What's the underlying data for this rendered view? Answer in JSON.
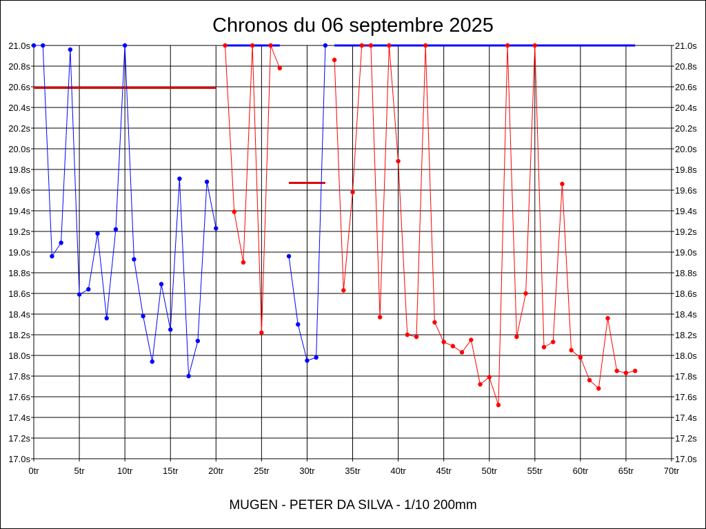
{
  "chart_data": {
    "type": "line",
    "title": "Chronos du 06 septembre 2025",
    "xlabel": "MUGEN - PETER DA SILVA - 1/10 200mm",
    "ylabel": "",
    "xlim": [
      0,
      70
    ],
    "ylim": [
      17.0,
      21.0
    ],
    "grid": true,
    "x_ticks": [
      "0tr",
      "5tr",
      "10tr",
      "15tr",
      "20tr",
      "25tr",
      "30tr",
      "35tr",
      "40tr",
      "45tr",
      "50tr",
      "55tr",
      "60tr",
      "65tr",
      "70tr"
    ],
    "y_ticks": [
      "17.0s",
      "17.2s",
      "17.4s",
      "17.6s",
      "17.8s",
      "18.0s",
      "18.2s",
      "18.4s",
      "18.6s",
      "18.8s",
      "19.0s",
      "19.2s",
      "19.4s",
      "19.6s",
      "19.8s",
      "20.0s",
      "20.2s",
      "20.4s",
      "20.6s",
      "20.8s",
      "21.0s"
    ],
    "series": [
      {
        "color": "#0000ff",
        "x": [
          0,
          1,
          2,
          3,
          4,
          5,
          6,
          7,
          8,
          9,
          10,
          11,
          12,
          13,
          14,
          15,
          16,
          17,
          18,
          19,
          20
        ],
        "values": [
          21.0,
          21.0,
          18.96,
          19.09,
          20.96,
          18.59,
          18.64,
          19.18,
          18.36,
          19.22,
          21.0,
          18.93,
          18.38,
          17.94,
          18.69,
          18.25,
          19.71,
          17.8,
          18.14,
          19.68,
          19.23
        ]
      },
      {
        "color": "#ff0000",
        "x": [
          21,
          22,
          23,
          24,
          25,
          26,
          27
        ],
        "values": [
          21.0,
          19.39,
          18.9,
          21.0,
          18.22,
          21.0,
          20.78
        ]
      },
      {
        "color": "#0000ff",
        "x": [
          28,
          29,
          30,
          31,
          32
        ],
        "values": [
          18.96,
          18.3,
          17.95,
          17.98,
          21.0
        ]
      },
      {
        "color": "#ff0000",
        "x": [
          33,
          34,
          35,
          36,
          37,
          38,
          39,
          40,
          41,
          42,
          43,
          44,
          45,
          46,
          47,
          48,
          49,
          50,
          51,
          52,
          53,
          54,
          55,
          56,
          57,
          58,
          59,
          60,
          61,
          62,
          63,
          64,
          65,
          66
        ],
        "values": [
          20.86,
          18.63,
          19.58,
          21.0,
          21.0,
          18.37,
          21.0,
          19.88,
          18.2,
          18.18,
          21.0,
          18.32,
          18.13,
          18.09,
          18.03,
          18.15,
          17.72,
          17.79,
          17.52,
          21.0,
          18.18,
          18.6,
          21.0,
          18.08,
          18.13,
          19.66,
          18.05,
          17.98,
          17.76,
          17.68,
          18.36,
          17.85,
          17.83,
          17.85
        ]
      }
    ],
    "reference_lines": [
      {
        "color": "#e00000",
        "x_start": 0,
        "x_end": 20,
        "y": 20.59
      },
      {
        "color": "#0000ff",
        "x_start": 21,
        "x_end": 27,
        "y": 21.0
      },
      {
        "color": "#e00000",
        "x_start": 28,
        "x_end": 32,
        "y": 19.67
      },
      {
        "color": "#0000ff",
        "x_start": 33,
        "x_end": 66,
        "y": 21.0
      }
    ]
  }
}
